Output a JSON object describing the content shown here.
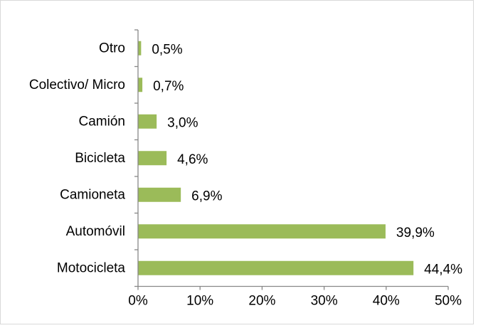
{
  "chart_data": {
    "type": "bar",
    "orientation": "horizontal",
    "title": "",
    "xlabel": "",
    "ylabel": "",
    "categories": [
      "Otro",
      "Colectivo/ Micro",
      "Camión",
      "Bicicleta",
      "Camioneta",
      "Automóvil",
      "Motocicleta"
    ],
    "values": [
      0.5,
      0.7,
      3.0,
      4.6,
      6.9,
      39.9,
      44.4
    ],
    "value_labels": [
      "0,5%",
      "0,7%",
      "3,0%",
      "4,6%",
      "6,9%",
      "39,9%",
      "44,4%"
    ],
    "xlim": [
      0,
      50
    ],
    "x_ticks": [
      0,
      10,
      20,
      30,
      40,
      50
    ],
    "x_tick_labels": [
      "0%",
      "10%",
      "20%",
      "30%",
      "40%",
      "50%"
    ],
    "grid": false,
    "legend": "none",
    "colors": {
      "bar": "#9bbb59"
    }
  }
}
